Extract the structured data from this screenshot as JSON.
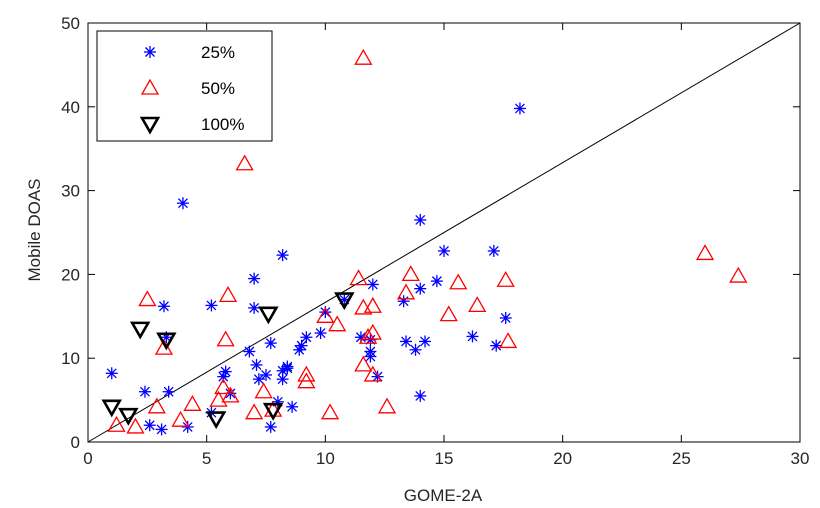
{
  "chart_data": {
    "type": "scatter",
    "xlabel": "GOME-2A",
    "ylabel": "Mobile DOAS",
    "xlim": [
      0,
      30
    ],
    "ylim": [
      0,
      50
    ],
    "xticks": [
      "0",
      "5",
      "10",
      "15",
      "20",
      "25",
      "30"
    ],
    "yticks": [
      "0",
      "10",
      "20",
      "30",
      "40",
      "50"
    ],
    "legend_position": "top-left",
    "reference_line": {
      "from": [
        0,
        0
      ],
      "to": [
        30,
        50
      ],
      "color": "#000000"
    },
    "series": [
      {
        "name": "25%",
        "marker": "asterisk",
        "color": "#0000ff",
        "points": [
          [
            1.0,
            8.2
          ],
          [
            2.4,
            6.0
          ],
          [
            2.6,
            2.0
          ],
          [
            3.1,
            1.5
          ],
          [
            3.2,
            16.2
          ],
          [
            3.3,
            12.5
          ],
          [
            3.4,
            6.0
          ],
          [
            4.0,
            28.5
          ],
          [
            4.2,
            1.8
          ],
          [
            5.2,
            16.3
          ],
          [
            5.2,
            3.5
          ],
          [
            5.7,
            7.8
          ],
          [
            5.8,
            8.4
          ],
          [
            6.0,
            5.8
          ],
          [
            6.8,
            10.8
          ],
          [
            7.0,
            19.5
          ],
          [
            7.0,
            16.0
          ],
          [
            7.1,
            9.2
          ],
          [
            7.2,
            7.5
          ],
          [
            7.5,
            8.0
          ],
          [
            7.7,
            11.8
          ],
          [
            7.7,
            1.8
          ],
          [
            8.0,
            4.8
          ],
          [
            8.2,
            22.3
          ],
          [
            8.2,
            8.5
          ],
          [
            8.2,
            7.5
          ],
          [
            8.4,
            8.8
          ],
          [
            8.4,
            9.0
          ],
          [
            8.6,
            4.2
          ],
          [
            8.9,
            11.0
          ],
          [
            9.0,
            11.5
          ],
          [
            9.2,
            12.5
          ],
          [
            9.8,
            13.0
          ],
          [
            10.0,
            15.5
          ],
          [
            10.8,
            17.0
          ],
          [
            11.5,
            12.5
          ],
          [
            11.9,
            12.2
          ],
          [
            11.9,
            10.8
          ],
          [
            11.9,
            10.2
          ],
          [
            12.0,
            18.8
          ],
          [
            12.2,
            7.8
          ],
          [
            13.3,
            16.8
          ],
          [
            13.4,
            12.0
          ],
          [
            13.8,
            11.0
          ],
          [
            14.0,
            26.5
          ],
          [
            14.0,
            18.3
          ],
          [
            14.0,
            5.5
          ],
          [
            14.2,
            12.0
          ],
          [
            14.7,
            19.2
          ],
          [
            15.0,
            22.8
          ],
          [
            16.2,
            12.6
          ],
          [
            17.1,
            22.8
          ],
          [
            17.2,
            11.5
          ],
          [
            17.6,
            14.8
          ],
          [
            18.2,
            39.8
          ]
        ]
      },
      {
        "name": "50%",
        "marker": "triangle-up",
        "color": "#ff0000",
        "points": [
          [
            1.2,
            2.0
          ],
          [
            2.0,
            1.8
          ],
          [
            2.5,
            17.0
          ],
          [
            2.9,
            4.2
          ],
          [
            3.2,
            11.2
          ],
          [
            3.9,
            2.6
          ],
          [
            4.4,
            4.5
          ],
          [
            5.5,
            5.0
          ],
          [
            5.7,
            6.5
          ],
          [
            5.8,
            12.2
          ],
          [
            5.9,
            17.5
          ],
          [
            6.0,
            5.5
          ],
          [
            6.6,
            33.2
          ],
          [
            7.0,
            3.5
          ],
          [
            7.4,
            6.0
          ],
          [
            7.8,
            3.8
          ],
          [
            9.2,
            8.0
          ],
          [
            9.2,
            7.2
          ],
          [
            10.0,
            15.0
          ],
          [
            10.2,
            3.5
          ],
          [
            10.5,
            14.0
          ],
          [
            11.4,
            19.5
          ],
          [
            11.6,
            45.8
          ],
          [
            11.6,
            16.0
          ],
          [
            11.6,
            9.2
          ],
          [
            11.8,
            12.5
          ],
          [
            12.0,
            13.0
          ],
          [
            12.0,
            16.2
          ],
          [
            12.0,
            8.0
          ],
          [
            12.6,
            4.2
          ],
          [
            13.4,
            17.8
          ],
          [
            13.6,
            20.0
          ],
          [
            15.2,
            15.2
          ],
          [
            15.6,
            19.0
          ],
          [
            16.4,
            16.3
          ],
          [
            17.6,
            19.3
          ],
          [
            17.7,
            12.0
          ],
          [
            26.0,
            22.5
          ],
          [
            27.4,
            19.8
          ]
        ]
      },
      {
        "name": "100%",
        "marker": "triangle-down",
        "color": "#000000",
        "points": [
          [
            1.0,
            4.2
          ],
          [
            1.7,
            3.2
          ],
          [
            2.2,
            13.5
          ],
          [
            3.3,
            12.2
          ],
          [
            5.4,
            2.8
          ],
          [
            7.6,
            15.3
          ],
          [
            7.8,
            3.8
          ],
          [
            10.8,
            17.0
          ]
        ]
      }
    ]
  }
}
